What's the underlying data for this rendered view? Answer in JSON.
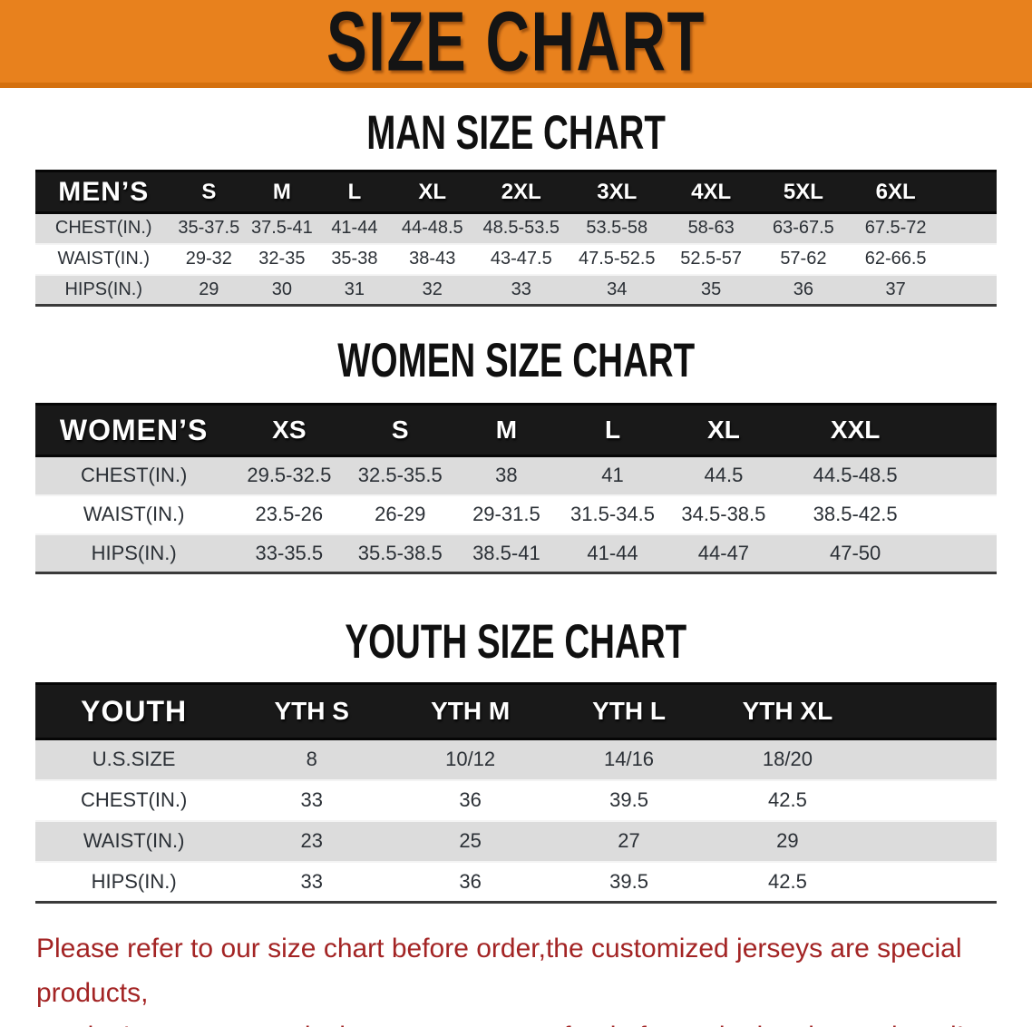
{
  "banner": {
    "title": "SIZE CHART",
    "bg_color": "#E8811D"
  },
  "sections": [
    {
      "heading": "MAN SIZE CHART",
      "table": {
        "label": "MEN’S",
        "columns": [
          "S",
          "M",
          "L",
          "XL",
          "2XL",
          "3XL",
          "4XL",
          "5XL",
          "6XL"
        ],
        "rows": [
          {
            "label": "CHEST(IN.)",
            "values": [
              "35-37.5",
              "37.5-41",
              "41-44",
              "44-48.5",
              "48.5-53.5",
              "53.5-58",
              "58-63",
              "63-67.5",
              "67.5-72"
            ]
          },
          {
            "label": "WAIST(IN.)",
            "values": [
              "29-32",
              "32-35",
              "35-38",
              "38-43",
              "43-47.5",
              "47.5-52.5",
              "52.5-57",
              "57-62",
              "62-66.5"
            ]
          },
          {
            "label": "HIPS(IN.)",
            "values": [
              "29",
              "30",
              "31",
              "32",
              "33",
              "34",
              "35",
              "36",
              "37"
            ]
          }
        ]
      }
    },
    {
      "heading": "WOMEN SIZE CHART",
      "table": {
        "label": "WOMEN’S",
        "columns": [
          "XS",
          "S",
          "M",
          "L",
          "XL",
          "XXL"
        ],
        "rows": [
          {
            "label": "CHEST(IN.)",
            "values": [
              "29.5-32.5",
              "32.5-35.5",
              "38",
              "41",
              "44.5",
              "44.5-48.5"
            ]
          },
          {
            "label": "WAIST(IN.)",
            "values": [
              "23.5-26",
              "26-29",
              "29-31.5",
              "31.5-34.5",
              "34.5-38.5",
              "38.5-42.5"
            ]
          },
          {
            "label": "HIPS(IN.)",
            "values": [
              "33-35.5",
              "35.5-38.5",
              "38.5-41",
              "41-44",
              "44-47",
              "47-50"
            ]
          }
        ]
      }
    },
    {
      "heading": "YOUTH SIZE CHART",
      "table": {
        "label": "YOUTH",
        "columns": [
          "YTH S",
          "YTH M",
          "YTH L",
          "YTH XL"
        ],
        "rows": [
          {
            "label": "U.S.SIZE",
            "values": [
              "8",
              "10/12",
              "14/16",
              "18/20"
            ]
          },
          {
            "label": "CHEST(IN.)",
            "values": [
              "33",
              "36",
              "39.5",
              "42.5"
            ]
          },
          {
            "label": "WAIST(IN.)",
            "values": [
              "23",
              "25",
              "27",
              "29"
            ]
          },
          {
            "label": "HIPS(IN.)",
            "values": [
              "33",
              "36",
              "39.5",
              "42.5"
            ]
          }
        ]
      }
    }
  ],
  "footer": {
    "line1": "Please refer to our size chart before order,the customized jerseys are special products,",
    "line2": "we don't accept cancel, change, teturn or refund after order has been placed!",
    "text_color": "#A32424"
  }
}
